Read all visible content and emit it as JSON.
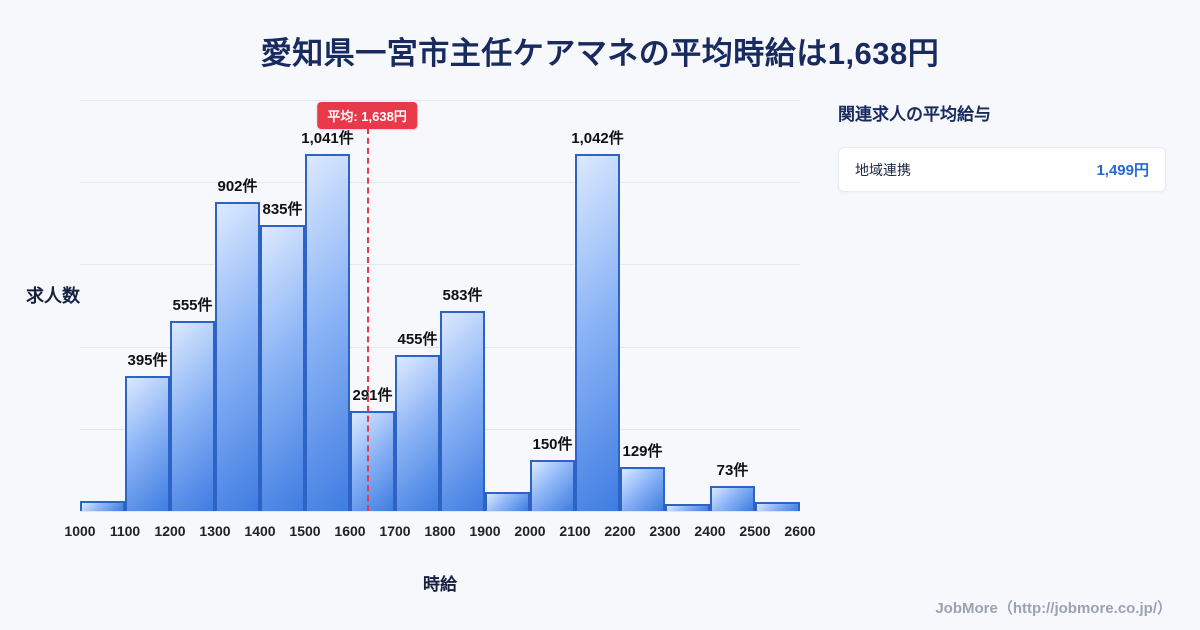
{
  "page": {
    "title": "愛知県一宮市主任ケアマネの平均時給は1,638円",
    "footer": "JobMore（http://jobmore.co.jp/）"
  },
  "chart_data": {
    "type": "bar",
    "title": "愛知県一宮市主任ケアマネの平均時給は1,638円",
    "xlabel": "時給",
    "ylabel": "求人数",
    "x_ticks": [
      1000,
      1100,
      1200,
      1300,
      1400,
      1500,
      1600,
      1700,
      1800,
      1900,
      2000,
      2100,
      2200,
      2300,
      2400,
      2500,
      2600
    ],
    "categories": [
      "1000-1100",
      "1100-1200",
      "1200-1300",
      "1300-1400",
      "1400-1500",
      "1500-1600",
      "1600-1700",
      "1700-1800",
      "1800-1900",
      "1900-2000",
      "2000-2100",
      "2100-2200",
      "2200-2300",
      "2300-2400",
      "2400-2500",
      "2500-2600"
    ],
    "values": [
      30,
      395,
      555,
      902,
      835,
      1041,
      291,
      455,
      583,
      55,
      150,
      1042,
      129,
      20,
      73,
      25
    ],
    "bar_labels": [
      "",
      "395件",
      "555件",
      "902件",
      "835件",
      "1,041件",
      "291件",
      "455件",
      "583件",
      "",
      "150件",
      "1,042件",
      "129件",
      "",
      "73件",
      ""
    ],
    "ylim": [
      0,
      1200
    ],
    "grid": true,
    "legend": "none",
    "mean": {
      "value": 1638,
      "label": "平均: 1,638円"
    },
    "colors": {
      "bar_fill_light": "#dce9ff",
      "bar_fill_dark": "#3f7ce2",
      "bar_border": "#2c63c4",
      "mean_line": "#e8394a",
      "gridline": "#e3e8f0"
    }
  },
  "side_panel": {
    "heading": "関連求人の平均給与",
    "rows": [
      {
        "label": "地域連携",
        "value": "1,499円"
      }
    ]
  }
}
